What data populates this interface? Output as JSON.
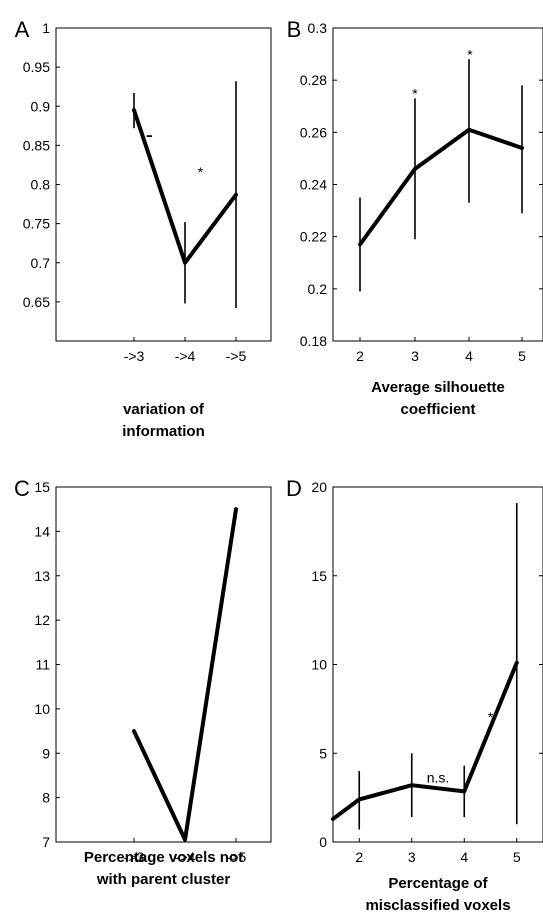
{
  "chart_data": [
    {
      "panel": "A",
      "type": "line",
      "categories": [
        "->3",
        "->4",
        "->5"
      ],
      "values": [
        0.895,
        0.7,
        0.787
      ],
      "error_low": [
        0.872,
        0.648,
        0.642
      ],
      "error_high": [
        0.917,
        0.752,
        0.932
      ],
      "ylim": [
        0.6,
        1.0
      ],
      "yticks": [
        "1",
        "0.95",
        "0.9",
        "0.85",
        "0.8",
        "0.75",
        "0.7",
        "0.65"
      ],
      "xlabel": [
        "variation of",
        "information"
      ],
      "annotations": [
        {
          "text": "-",
          "x": 3.3,
          "y": 0.862
        },
        {
          "text": "*",
          "x": 4.3,
          "y": 0.82
        }
      ]
    },
    {
      "panel": "B",
      "type": "line",
      "categories": [
        "2",
        "3",
        "4",
        "5"
      ],
      "values": [
        0.217,
        0.246,
        0.261,
        0.254
      ],
      "error_low": [
        0.199,
        0.219,
        0.233,
        0.229
      ],
      "error_high": [
        0.235,
        0.273,
        0.288,
        0.278
      ],
      "ylim": [
        0.18,
        0.3
      ],
      "yticks": [
        "0.3",
        "0.28",
        "0.26",
        "0.24",
        "0.22",
        "0.2",
        "0.18"
      ],
      "xlabel": [
        "Average silhouette",
        "coefficient"
      ],
      "annotations": [
        {
          "text": "*",
          "x": 3,
          "y": 0.276
        },
        {
          "text": "*",
          "x": 4,
          "y": 0.291
        }
      ]
    },
    {
      "panel": "C",
      "type": "line",
      "categories": [
        "->3",
        "->4",
        "->5"
      ],
      "values": [
        9.5,
        7.05,
        14.5
      ],
      "ylim": [
        7,
        15
      ],
      "yticks": [
        "15",
        "14",
        "13",
        "12",
        "11",
        "10",
        "9",
        "8",
        "7"
      ],
      "xlabel": [
        "Percentage voxels not",
        "with parent cluster"
      ],
      "annotations": []
    },
    {
      "panel": "D",
      "type": "line",
      "x": [
        1.5,
        2,
        3,
        4,
        5
      ],
      "values": [
        1.3,
        2.4,
        3.2,
        2.85,
        10.1
      ],
      "error_low": [
        null,
        0.7,
        1.4,
        1.4,
        1.0
      ],
      "error_high": [
        null,
        4.0,
        5.0,
        4.3,
        19.1
      ],
      "xticks": [
        "2",
        "3",
        "4",
        "5"
      ],
      "ylim": [
        0,
        20
      ],
      "yticks": [
        "20",
        "15",
        "10",
        "5",
        "0"
      ],
      "xlabel": [
        "Percentage of",
        "misclassified voxels"
      ],
      "annotations": [
        {
          "text": "n.s.",
          "x": 3.5,
          "y": 3.8
        },
        {
          "text": "*",
          "x": 4.5,
          "y": 7.2
        }
      ]
    }
  ]
}
